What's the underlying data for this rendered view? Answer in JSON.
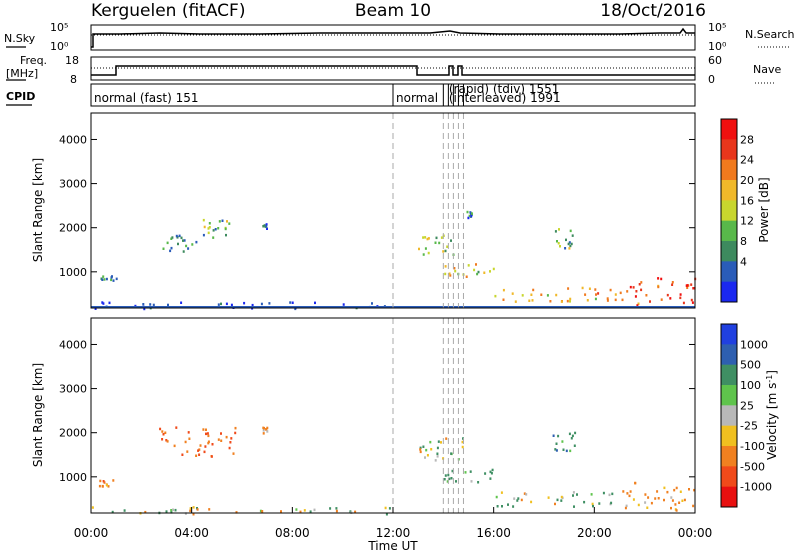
{
  "header": {
    "station": "Kerguelen (fitACF)",
    "beam": "Beam 10",
    "date": "18/Oct/2016"
  },
  "sky_panel": {
    "left_label": "N.Sky",
    "right_label": "N.Search",
    "left_ticks": [
      "10^5",
      "10^0"
    ],
    "right_ticks": [
      "10^5",
      "10^0"
    ]
  },
  "freq_panel": {
    "left_label_line1": "Freq.",
    "left_label_line2": "[MHz]",
    "left_ticks": [
      "18",
      "8"
    ],
    "right_label": "Nave",
    "right_ticks": [
      "60",
      "0"
    ]
  },
  "cpid_panel": {
    "label": "CPID",
    "modes": [
      {
        "name": "normal (fast) 151",
        "start_hour": 0.0
      },
      {
        "name": "normal",
        "start_hour": 12.0
      },
      {
        "name": "(rapid) (tdiv) 1551",
        "start_hour": 14.1
      },
      {
        "name": "(interleaved) 1991",
        "start_hour": 14.1
      }
    ],
    "mode_change_hours": [
      12.0,
      14.0,
      14.2,
      14.4,
      14.6,
      14.8
    ]
  },
  "x_axis": {
    "label": "Time UT",
    "ticks": [
      "00:00",
      "04:00",
      "08:00",
      "12:00",
      "16:00",
      "20:00",
      "00:00"
    ],
    "range_hours": [
      0,
      24
    ]
  },
  "colors": {
    "power_scale": [
      "#1a28f0",
      "#2a5cb8",
      "#3d8a5e",
      "#58b84a",
      "#c8d62e",
      "#f0b82a",
      "#f07a1e",
      "#e8361c",
      "#f01010"
    ],
    "velocity_scale": [
      "#2040e0",
      "#2e5fb0",
      "#3f8f63",
      "#5fc44c",
      "#b8b8b8",
      "#f0c020",
      "#f08020",
      "#f04a1a",
      "#e81010"
    ],
    "ground_scatter": "#aaaaaa"
  },
  "chart_data": [
    {
      "type": "heatmap",
      "title": "Power",
      "ylabel": "Slant Range [km]",
      "xlabel": "",
      "colorbar_label": "Power [dB]",
      "colorbar_ticks": [
        "28",
        "24",
        "20",
        "16",
        "12",
        "8",
        "4"
      ],
      "colorbar_range": [
        0,
        32
      ],
      "y_ticks": [
        "1000",
        "2000",
        "3000",
        "4000"
      ],
      "ylim": [
        180,
        4600
      ],
      "xlim": [
        0,
        24
      ],
      "echo_regions": [
        {
          "t0": 0.3,
          "t1": 1.0,
          "r0": 800,
          "r1": 1000,
          "value": 6
        },
        {
          "t0": 2.7,
          "t1": 4.3,
          "r0": 1450,
          "r1": 2000,
          "value": 9
        },
        {
          "t0": 4.3,
          "t1": 5.8,
          "r0": 1800,
          "r1": 2400,
          "value": 12
        },
        {
          "t0": 6.8,
          "t1": 7.0,
          "r0": 2000,
          "r1": 2200,
          "value": 5
        },
        {
          "t0": 12.9,
          "t1": 14.4,
          "r0": 1400,
          "r1": 2000,
          "value": 14
        },
        {
          "t0": 14.9,
          "t1": 15.1,
          "r0": 2200,
          "r1": 2450,
          "value": 8
        },
        {
          "t0": 14.0,
          "t1": 16.0,
          "r0": 900,
          "r1": 1300,
          "value": 18
        },
        {
          "t0": 16.0,
          "t1": 21.0,
          "r0": 350,
          "r1": 800,
          "value": 20
        },
        {
          "t0": 18.3,
          "t1": 19.2,
          "r0": 1550,
          "r1": 2200,
          "value": 10
        },
        {
          "t0": 21.0,
          "t1": 24.0,
          "r0": 250,
          "r1": 1100,
          "value": 26
        },
        {
          "t0": 0.0,
          "t1": 11.9,
          "r0": 180,
          "r1": 400,
          "value": 4
        }
      ]
    },
    {
      "type": "heatmap",
      "title": "Velocity",
      "ylabel": "Slant Range [km]",
      "xlabel": "Time UT",
      "colorbar_label": "Velocity [m s^-1]",
      "colorbar_ticks": [
        "1000",
        "500",
        "100",
        "25",
        "-25",
        "-100",
        "-500",
        "-1000"
      ],
      "y_ticks": [
        "1000",
        "2000",
        "3000",
        "4000"
      ],
      "ylim": [
        180,
        4600
      ],
      "xlim": [
        0,
        24
      ],
      "echo_regions": [
        {
          "t0": 0.3,
          "t1": 1.0,
          "r0": 800,
          "r1": 1000,
          "value": -200
        },
        {
          "t0": 2.7,
          "t1": 5.8,
          "r0": 1450,
          "r1": 2400,
          "value": -300
        },
        {
          "t0": 6.8,
          "t1": 7.0,
          "r0": 2000,
          "r1": 2200,
          "value": -100
        },
        {
          "t0": 12.9,
          "t1": 14.8,
          "r0": 1400,
          "r1": 2100,
          "value": 0
        },
        {
          "t0": 14.0,
          "t1": 16.0,
          "r0": 900,
          "r1": 1300,
          "value": 150
        },
        {
          "t0": 16.0,
          "t1": 21.0,
          "r0": 350,
          "r1": 800,
          "value": 80
        },
        {
          "t0": 18.3,
          "t1": 19.2,
          "r0": 1550,
          "r1": 2200,
          "value": 200
        },
        {
          "t0": 21.0,
          "t1": 24.0,
          "r0": 250,
          "r1": 1100,
          "value": -150
        },
        {
          "t0": 0.0,
          "t1": 11.9,
          "r0": 180,
          "r1": 400,
          "value": 0
        }
      ]
    }
  ]
}
